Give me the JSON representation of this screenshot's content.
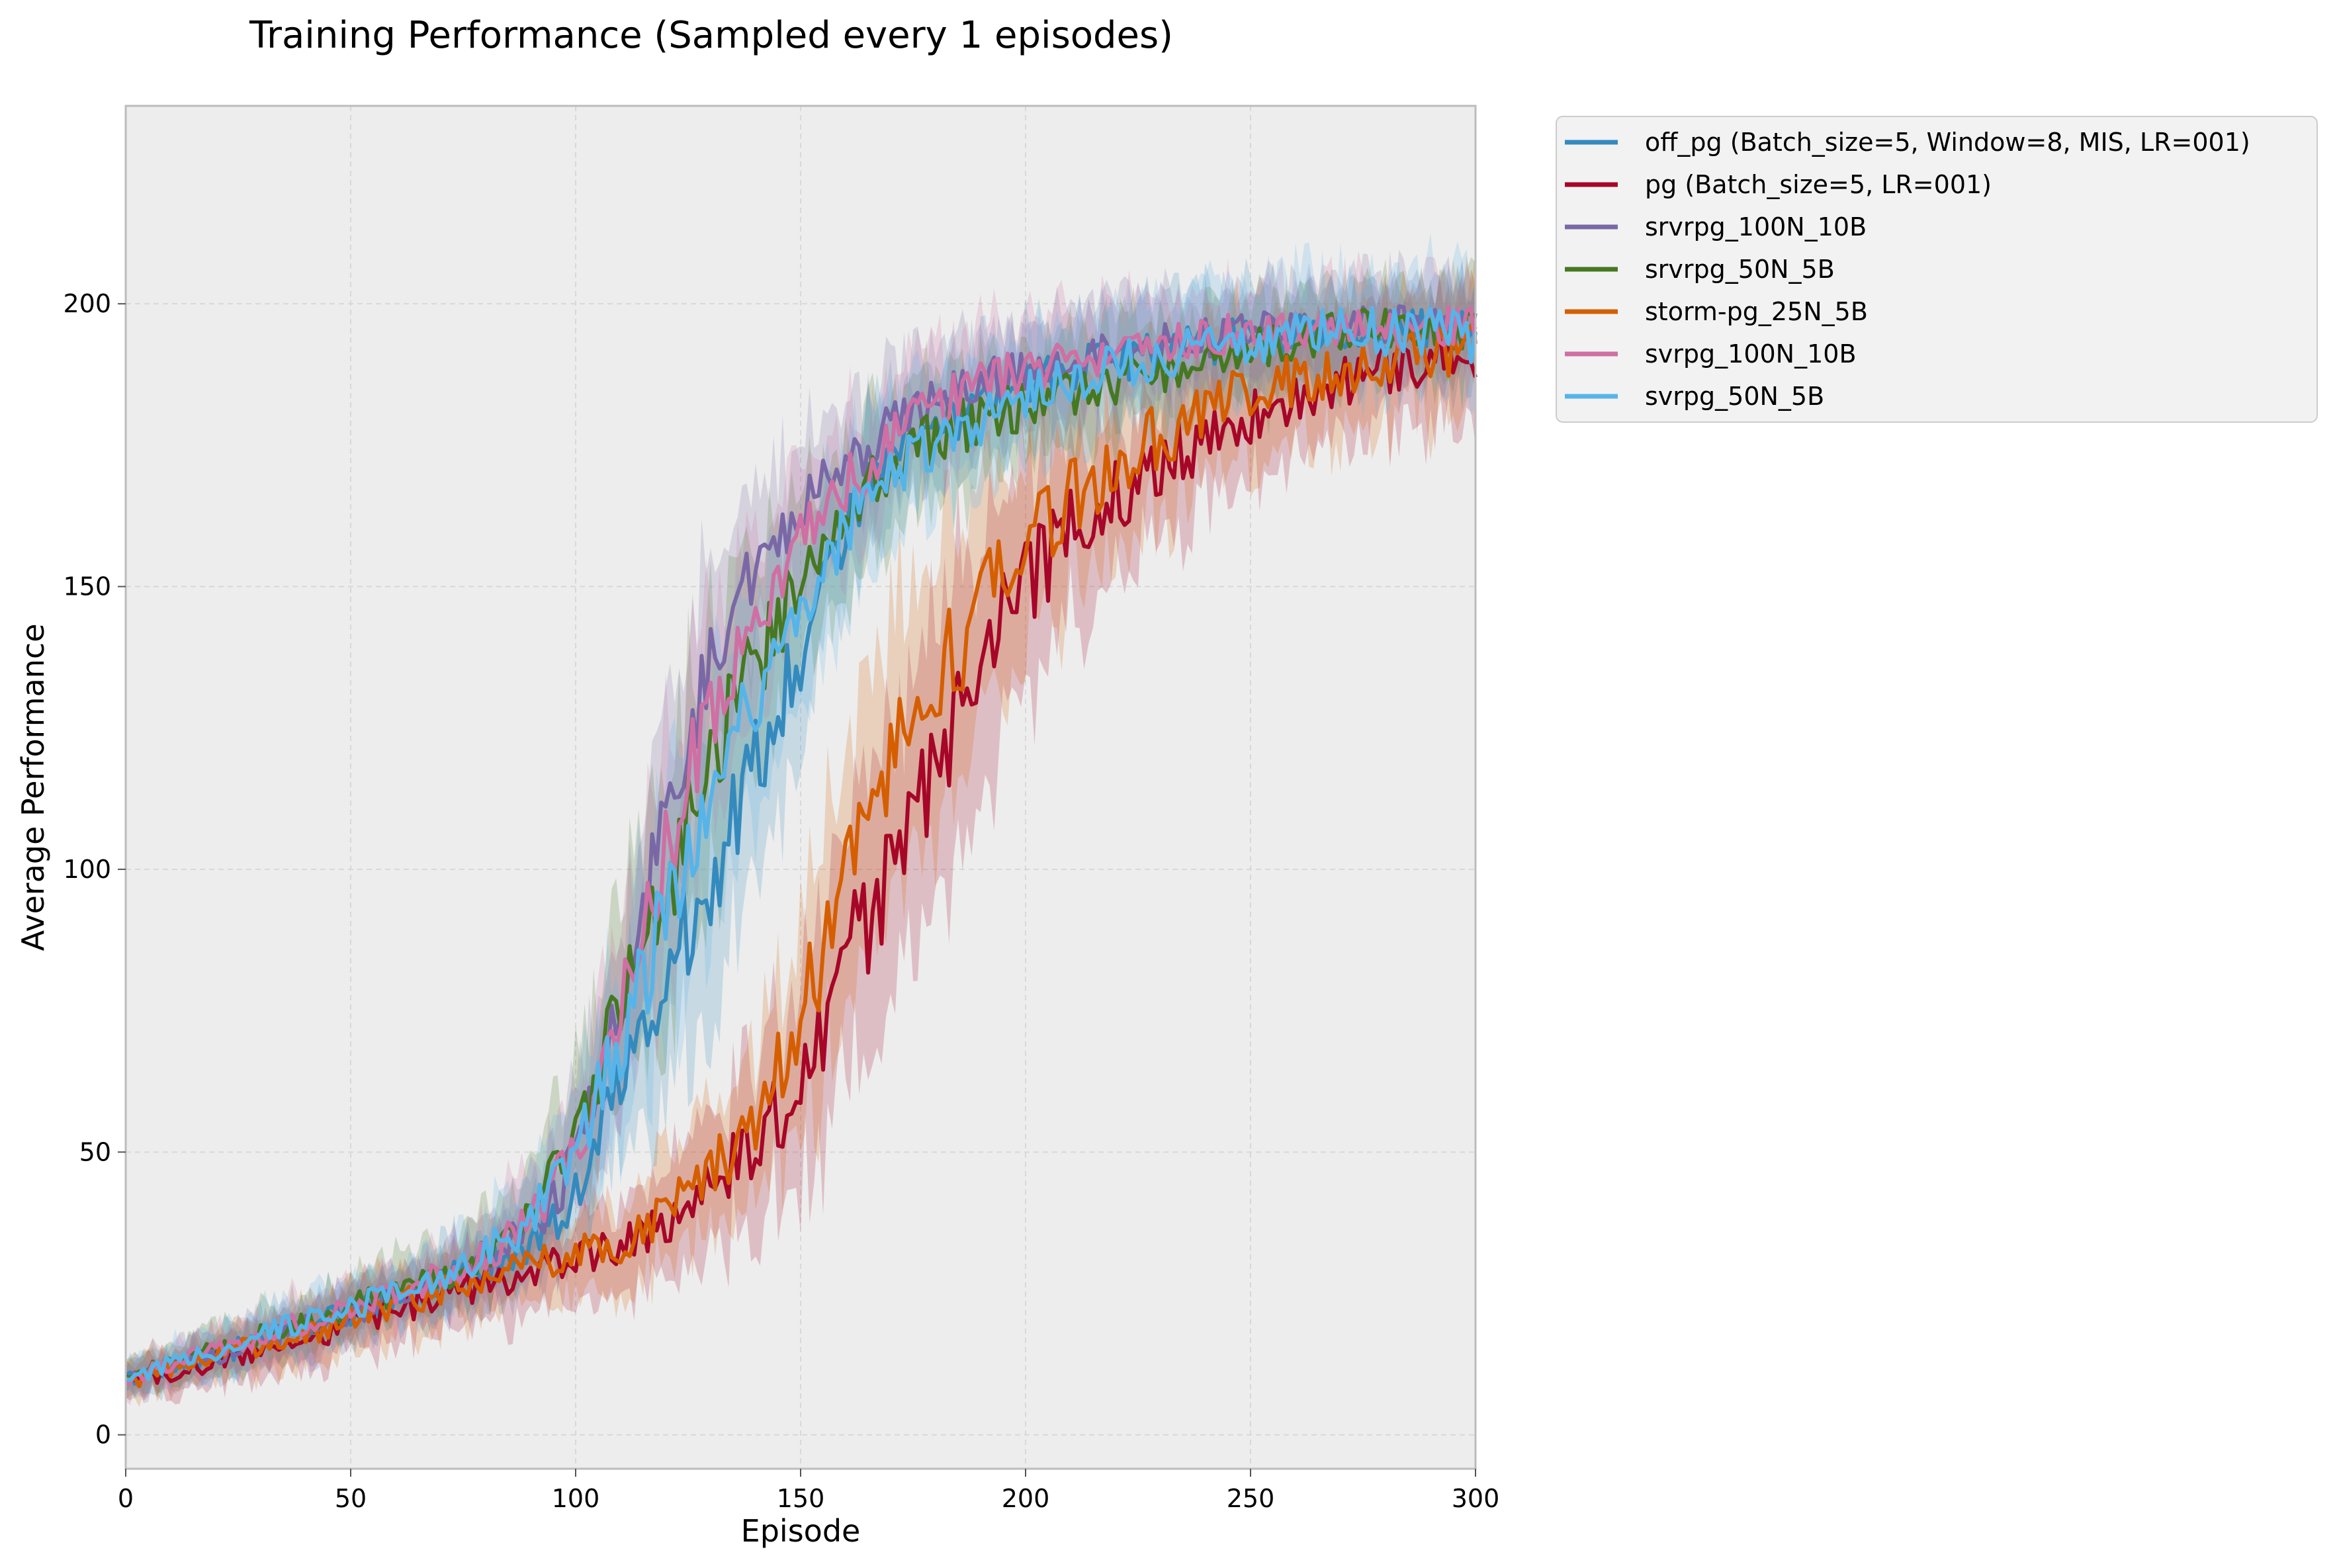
{
  "chart_data": {
    "type": "line",
    "title": "Training Performance (Sampled every 1 episodes)",
    "xlabel": "Episode",
    "ylabel": "Average Performance",
    "xlim": [
      0,
      300
    ],
    "ylim": [
      -6,
      235
    ],
    "xticks": [
      0,
      50,
      100,
      150,
      200,
      250,
      300
    ],
    "yticks": [
      0,
      50,
      100,
      150,
      200
    ],
    "grid": true,
    "legend_position": "outside-top-right",
    "background": "#ededed",
    "shaded_bands": true,
    "series": [
      {
        "name": "off_pg (Batch_size=5, Window=8, MIS, LR=001)",
        "color": "#348abd",
        "x": [
          0,
          20,
          40,
          60,
          70,
          80,
          90,
          100,
          105,
          110,
          115,
          120,
          125,
          130,
          135,
          140,
          145,
          150,
          155,
          160,
          165,
          170,
          175,
          180,
          190,
          200,
          210,
          220,
          230,
          240,
          250,
          260,
          270,
          280,
          290,
          300
        ],
        "y": [
          10,
          14,
          19,
          24,
          27,
          30,
          34,
          42,
          52,
          62,
          70,
          78,
          90,
          96,
          108,
          118,
          128,
          138,
          150,
          160,
          168,
          172,
          175,
          178,
          183,
          186,
          188,
          190,
          192,
          193,
          194,
          195,
          195,
          196,
          196,
          195
        ],
        "spread": [
          3,
          4,
          5,
          5,
          6,
          7,
          8,
          10,
          13,
          16,
          18,
          20,
          22,
          22,
          22,
          20,
          18,
          16,
          14,
          12,
          12,
          11,
          10,
          10,
          10,
          9,
          9,
          9,
          9,
          9,
          8,
          8,
          8,
          8,
          8,
          8
        ]
      },
      {
        "name": "pg (Batch_size=5, LR=001)",
        "color": "#a60628",
        "x": [
          0,
          20,
          40,
          60,
          80,
          100,
          110,
          120,
          130,
          140,
          150,
          155,
          160,
          165,
          170,
          175,
          180,
          185,
          190,
          195,
          200,
          210,
          220,
          230,
          240,
          250,
          260,
          270,
          280,
          290,
          300
        ],
        "y": [
          9,
          13,
          17,
          22,
          27,
          31,
          33,
          38,
          44,
          52,
          62,
          72,
          82,
          92,
          100,
          110,
          120,
          130,
          138,
          144,
          150,
          160,
          166,
          172,
          176,
          180,
          183,
          186,
          188,
          190,
          192
        ],
        "spread": [
          3,
          4,
          5,
          6,
          7,
          7,
          8,
          10,
          12,
          14,
          18,
          20,
          22,
          24,
          25,
          26,
          26,
          25,
          24,
          22,
          20,
          17,
          15,
          13,
          12,
          11,
          11,
          11,
          11,
          12,
          12
        ]
      },
      {
        "name": "srvrpg_100N_10B",
        "color": "#7a68a6",
        "x": [
          0,
          20,
          40,
          60,
          70,
          80,
          90,
          100,
          105,
          110,
          115,
          120,
          125,
          130,
          135,
          140,
          145,
          150,
          160,
          170,
          180,
          190,
          200,
          210,
          220,
          230,
          240,
          250,
          260,
          270,
          280,
          290,
          300
        ],
        "y": [
          10,
          14,
          19,
          24,
          27,
          31,
          36,
          48,
          62,
          78,
          92,
          108,
          122,
          136,
          146,
          152,
          158,
          164,
          172,
          178,
          182,
          186,
          188,
          190,
          192,
          193,
          194,
          195,
          195,
          196,
          196,
          196,
          196
        ],
        "spread": [
          3,
          4,
          5,
          5,
          6,
          7,
          9,
          11,
          14,
          16,
          18,
          19,
          19,
          18,
          16,
          14,
          13,
          12,
          11,
          10,
          10,
          9,
          9,
          9,
          9,
          8,
          8,
          8,
          8,
          8,
          8,
          8,
          8
        ]
      },
      {
        "name": "srvrpg_50N_5B",
        "color": "#467821",
        "x": [
          0,
          20,
          40,
          60,
          70,
          80,
          90,
          100,
          105,
          110,
          115,
          120,
          125,
          130,
          135,
          140,
          145,
          150,
          160,
          170,
          180,
          190,
          200,
          210,
          220,
          230,
          240,
          250,
          260,
          270,
          280,
          290,
          300
        ],
        "y": [
          10,
          15,
          20,
          25,
          28,
          32,
          40,
          52,
          64,
          74,
          86,
          98,
          108,
          118,
          128,
          136,
          144,
          152,
          164,
          172,
          176,
          180,
          182,
          184,
          186,
          188,
          190,
          192,
          194,
          195,
          196,
          196,
          195
        ],
        "spread": [
          3,
          4,
          5,
          6,
          6,
          7,
          9,
          12,
          15,
          18,
          20,
          22,
          22,
          22,
          20,
          18,
          17,
          15,
          13,
          12,
          11,
          11,
          10,
          10,
          10,
          9,
          9,
          9,
          9,
          8,
          8,
          8,
          8
        ]
      },
      {
        "name": "storm-pg_25N_5B",
        "color": "#d55e00",
        "x": [
          0,
          20,
          40,
          60,
          80,
          100,
          110,
          120,
          130,
          140,
          145,
          150,
          155,
          160,
          165,
          170,
          175,
          180,
          185,
          190,
          195,
          200,
          210,
          220,
          230,
          240,
          250,
          260,
          270,
          280,
          290,
          300
        ],
        "y": [
          9,
          14,
          18,
          23,
          28,
          32,
          34,
          40,
          46,
          56,
          64,
          74,
          86,
          100,
          110,
          118,
          126,
          134,
          140,
          146,
          152,
          158,
          166,
          172,
          177,
          181,
          184,
          186,
          188,
          190,
          191,
          192
        ],
        "spread": [
          3,
          4,
          5,
          6,
          6,
          7,
          8,
          10,
          12,
          14,
          16,
          18,
          20,
          22,
          23,
          24,
          24,
          23,
          22,
          20,
          19,
          18,
          16,
          14,
          13,
          12,
          12,
          11,
          11,
          11,
          11,
          11
        ]
      },
      {
        "name": "svrpg_100N_10B",
        "color": "#cf6fa3",
        "x": [
          0,
          20,
          40,
          60,
          70,
          80,
          90,
          100,
          105,
          110,
          115,
          120,
          125,
          130,
          135,
          140,
          145,
          150,
          160,
          170,
          180,
          190,
          200,
          210,
          220,
          230,
          240,
          250,
          260,
          270,
          280,
          290,
          300
        ],
        "y": [
          10,
          15,
          20,
          25,
          28,
          32,
          38,
          50,
          62,
          76,
          88,
          102,
          116,
          128,
          138,
          146,
          152,
          158,
          168,
          176,
          182,
          186,
          188,
          190,
          192,
          193,
          194,
          195,
          195,
          196,
          196,
          196,
          196
        ],
        "spread": [
          3,
          4,
          5,
          5,
          6,
          7,
          9,
          11,
          14,
          16,
          18,
          19,
          19,
          18,
          17,
          15,
          14,
          13,
          12,
          11,
          10,
          10,
          9,
          9,
          9,
          8,
          8,
          8,
          8,
          8,
          8,
          8,
          8
        ]
      },
      {
        "name": "svrpg_50N_5B",
        "color": "#56b4e9",
        "x": [
          0,
          20,
          40,
          60,
          70,
          80,
          90,
          100,
          105,
          110,
          115,
          120,
          125,
          130,
          135,
          140,
          145,
          150,
          160,
          170,
          180,
          190,
          200,
          210,
          220,
          230,
          240,
          250,
          260,
          270,
          280,
          290,
          300
        ],
        "y": [
          10,
          15,
          20,
          25,
          28,
          32,
          38,
          50,
          60,
          70,
          80,
          92,
          104,
          114,
          124,
          132,
          140,
          148,
          160,
          170,
          176,
          180,
          184,
          187,
          189,
          191,
          192,
          193,
          194,
          195,
          195,
          195,
          194
        ],
        "spread": [
          3,
          4,
          5,
          5,
          6,
          7,
          9,
          11,
          14,
          17,
          19,
          21,
          22,
          22,
          21,
          19,
          17,
          15,
          13,
          12,
          11,
          11,
          10,
          10,
          10,
          10,
          10,
          10,
          10,
          10,
          10,
          10,
          10
        ]
      }
    ]
  }
}
